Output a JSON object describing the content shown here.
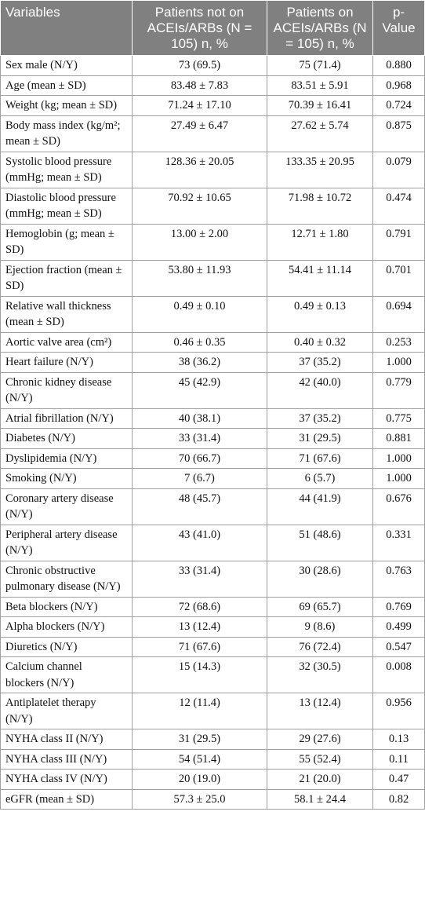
{
  "table": {
    "header": [
      "Variables",
      "Patients not on ACEIs/ARBs (N = 105) n, %",
      "Patients on ACEIs/ARBs (N = 105) n, %",
      "p-Value"
    ],
    "rows": [
      [
        "Sex male (N/Y)",
        "73 (69.5)",
        "75 (71.4)",
        "0.880"
      ],
      [
        "Age (mean ± SD)",
        "83.48 ± 7.83",
        "83.51 ± 5.91",
        "0.968"
      ],
      [
        "Weight (kg; mean ± SD)",
        "71.24 ± 17.10",
        "70.39 ± 16.41",
        "0.724"
      ],
      [
        "Body mass index (kg/m²; mean ± SD)",
        "27.49 ± 6.47",
        "27.62 ± 5.74",
        "0.875"
      ],
      [
        "Systolic blood pressure (mmHg; mean ± SD)",
        "128.36 ± 20.05",
        "133.35 ± 20.95",
        "0.079"
      ],
      [
        "Diastolic blood pressure (mmHg; mean ± SD)",
        "70.92 ± 10.65",
        "71.98 ± 10.72",
        "0.474"
      ],
      [
        "Hemoglobin (g; mean ± SD)",
        "13.00 ± 2.00",
        "12.71 ± 1.80",
        "0.791"
      ],
      [
        "Ejection fraction (mean ± SD)",
        "53.80 ± 11.93",
        "54.41 ± 11.14",
        "0.701"
      ],
      [
        "Relative wall thickness (mean ± SD)",
        "0.49 ± 0.10",
        "0.49 ± 0.13",
        "0.694"
      ],
      [
        "Aortic valve area (cm²)",
        "0.46 ± 0.35",
        "0.40 ± 0.32",
        "0.253"
      ],
      [
        "Heart failure (N/Y)",
        "38 (36.2)",
        "37 (35.2)",
        "1.000"
      ],
      [
        "Chronic kidney disease (N/Y)",
        "45 (42.9)",
        "42 (40.0)",
        "0.779"
      ],
      [
        "Atrial fibrillation (N/Y)",
        "40 (38.1)",
        "37 (35.2)",
        "0.775"
      ],
      [
        "Diabetes (N/Y)",
        "33 (31.4)",
        "31 (29.5)",
        "0.881"
      ],
      [
        "Dyslipidemia (N/Y)",
        "70 (66.7)",
        "71 (67.6)",
        "1.000"
      ],
      [
        "Smoking (N/Y)",
        "7 (6.7)",
        "6 (5.7)",
        "1.000"
      ],
      [
        "Coronary artery disease (N/Y)",
        "48 (45.7)",
        "44 (41.9)",
        "0.676"
      ],
      [
        "Peripheral artery disease (N/Y)",
        "43 (41.0)",
        "51 (48.6)",
        "0.331"
      ],
      [
        "Chronic obstructive pulmonary disease (N/Y)",
        "33 (31.4)",
        "30 (28.6)",
        "0.763"
      ],
      [
        "Beta blockers (N/Y)",
        "72 (68.6)",
        "69 (65.7)",
        "0.769"
      ],
      [
        "Alpha blockers (N/Y)",
        "13 (12.4)",
        "9 (8.6)",
        "0.499"
      ],
      [
        "Diuretics (N/Y)",
        "71 (67.6)",
        "76 (72.4)",
        "0.547"
      ],
      [
        "Calcium channel blockers (N/Y)",
        "15 (14.3)",
        "32 (30.5)",
        "0.008"
      ],
      [
        "Antiplatelet therapy (N/Y)",
        "12 (11.4)",
        "13 (12.4)",
        "0.956"
      ],
      [
        "NYHA class II (N/Y)",
        "31 (29.5)",
        "29 (27.6)",
        "0.13"
      ],
      [
        "NYHA class III (N/Y)",
        "54 (51.4)",
        "55 (52.4)",
        "0.11"
      ],
      [
        "NYHA class IV (N/Y)",
        "20 (19.0)",
        "21 (20.0)",
        "0.47"
      ],
      [
        "eGFR (mean ± SD)",
        "57.3 ± 25.0",
        "58.1 ± 24.4",
        "0.82"
      ]
    ]
  }
}
